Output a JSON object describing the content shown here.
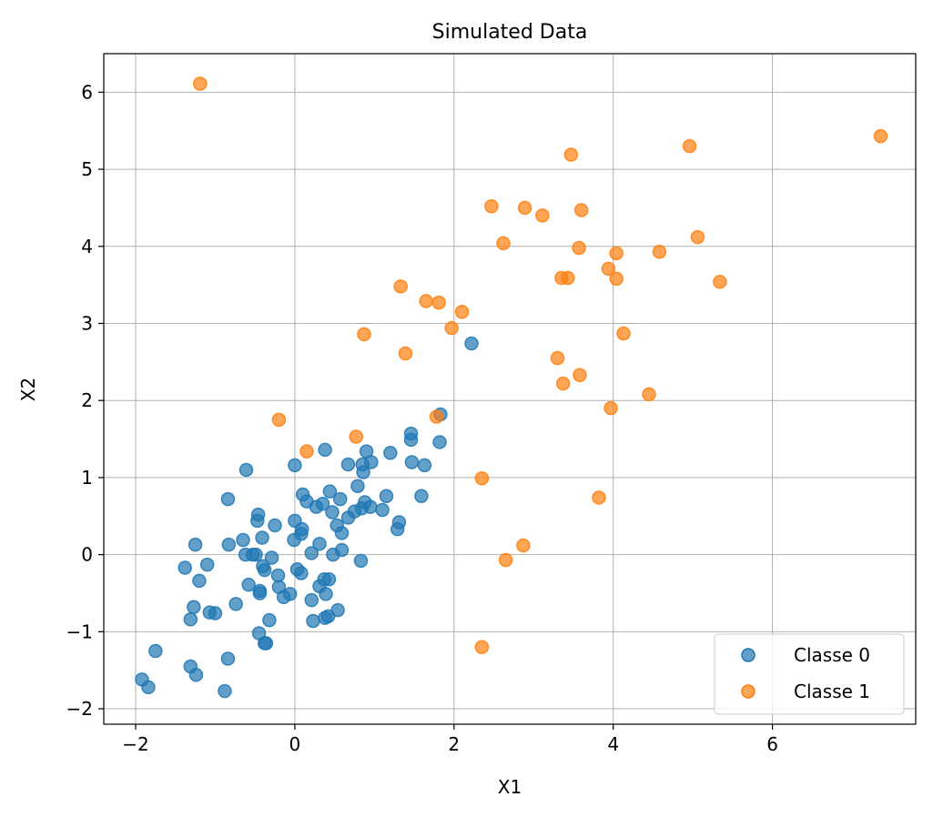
{
  "chart_data": {
    "type": "scatter",
    "title": "Simulated Data",
    "xlabel": "X1",
    "ylabel": "X2",
    "xlim": [
      -2.4,
      7.8
    ],
    "ylim": [
      -2.2,
      6.5
    ],
    "xticks": [
      -2,
      0,
      2,
      4,
      6
    ],
    "yticks": [
      -2,
      -1,
      0,
      1,
      2,
      3,
      4,
      5,
      6
    ],
    "xtick_labels": [
      "−2",
      "0",
      "2",
      "4",
      "6"
    ],
    "ytick_labels": [
      "−2",
      "−1",
      "0",
      "1",
      "2",
      "3",
      "4",
      "5",
      "6"
    ],
    "grid": true,
    "legend_position": "bottom-right",
    "series": [
      {
        "name": "Classe 0",
        "color": "#1f77b4",
        "points": [
          [
            2.22,
            2.74
          ],
          [
            1.83,
            1.82
          ],
          [
            1.46,
            1.57
          ],
          [
            1.46,
            1.49
          ],
          [
            1.82,
            1.46
          ],
          [
            0.9,
            1.34
          ],
          [
            1.2,
            1.32
          ],
          [
            0.38,
            1.36
          ],
          [
            0.96,
            1.2
          ],
          [
            1.47,
            1.2
          ],
          [
            1.63,
            1.16
          ],
          [
            0.0,
            1.16
          ],
          [
            0.67,
            1.17
          ],
          [
            0.85,
            1.17
          ],
          [
            -0.61,
            1.1
          ],
          [
            0.86,
            1.07
          ],
          [
            0.79,
            0.89
          ],
          [
            1.59,
            0.76
          ],
          [
            1.15,
            0.76
          ],
          [
            0.1,
            0.78
          ],
          [
            0.44,
            0.82
          ],
          [
            -0.84,
            0.72
          ],
          [
            0.15,
            0.69
          ],
          [
            0.57,
            0.72
          ],
          [
            0.88,
            0.68
          ],
          [
            0.35,
            0.66
          ],
          [
            0.27,
            0.62
          ],
          [
            0.84,
            0.6
          ],
          [
            0.95,
            0.62
          ],
          [
            1.1,
            0.58
          ],
          [
            0.47,
            0.55
          ],
          [
            0.75,
            0.56
          ],
          [
            0.67,
            0.48
          ],
          [
            -0.46,
            0.52
          ],
          [
            -0.47,
            0.44
          ],
          [
            0.0,
            0.44
          ],
          [
            1.31,
            0.42
          ],
          [
            0.53,
            0.38
          ],
          [
            -0.25,
            0.38
          ],
          [
            1.29,
            0.33
          ],
          [
            0.09,
            0.33
          ],
          [
            0.59,
            0.28
          ],
          [
            0.08,
            0.27
          ],
          [
            -0.41,
            0.22
          ],
          [
            -0.65,
            0.19
          ],
          [
            -0.01,
            0.19
          ],
          [
            0.31,
            0.14
          ],
          [
            -1.25,
            0.13
          ],
          [
            -0.83,
            0.13
          ],
          [
            0.59,
            0.06
          ],
          [
            0.21,
            0.02
          ],
          [
            -0.53,
            0.0
          ],
          [
            -0.49,
            0.0
          ],
          [
            -0.62,
            0.0
          ],
          [
            -0.29,
            -0.04
          ],
          [
            0.48,
            0.0
          ],
          [
            0.83,
            -0.08
          ],
          [
            -1.1,
            -0.13
          ],
          [
            -0.4,
            -0.15
          ],
          [
            -1.38,
            -0.17
          ],
          [
            -0.38,
            -0.2
          ],
          [
            0.03,
            -0.19
          ],
          [
            0.08,
            -0.24
          ],
          [
            -0.21,
            -0.27
          ],
          [
            -1.2,
            -0.34
          ],
          [
            0.37,
            -0.32
          ],
          [
            0.43,
            -0.32
          ],
          [
            0.31,
            -0.41
          ],
          [
            -0.2,
            -0.42
          ],
          [
            -0.58,
            -0.39
          ],
          [
            -0.44,
            -0.47
          ],
          [
            -0.44,
            -0.5
          ],
          [
            -0.06,
            -0.51
          ],
          [
            0.39,
            -0.51
          ],
          [
            -0.14,
            -0.55
          ],
          [
            0.21,
            -0.59
          ],
          [
            -0.74,
            -0.64
          ],
          [
            -1.27,
            -0.68
          ],
          [
            0.54,
            -0.72
          ],
          [
            -1.07,
            -0.75
          ],
          [
            -1.0,
            -0.76
          ],
          [
            0.42,
            -0.8
          ],
          [
            0.38,
            -0.82
          ],
          [
            -1.31,
            -0.84
          ],
          [
            -0.32,
            -0.85
          ],
          [
            0.23,
            -0.86
          ],
          [
            -0.45,
            -1.02
          ],
          [
            -0.38,
            -1.15
          ],
          [
            -0.36,
            -1.15
          ],
          [
            -0.84,
            -1.35
          ],
          [
            -1.31,
            -1.45
          ],
          [
            -1.24,
            -1.56
          ],
          [
            -1.75,
            -1.25
          ],
          [
            -1.92,
            -1.62
          ],
          [
            -1.84,
            -1.72
          ],
          [
            -0.88,
            -1.77
          ]
        ]
      },
      {
        "name": "Classe 1",
        "color": "#ff7f0e",
        "points": [
          [
            -1.19,
            6.11
          ],
          [
            7.36,
            5.43
          ],
          [
            4.96,
            5.3
          ],
          [
            3.47,
            5.19
          ],
          [
            2.47,
            4.52
          ],
          [
            2.89,
            4.5
          ],
          [
            3.11,
            4.4
          ],
          [
            3.6,
            4.47
          ],
          [
            5.06,
            4.12
          ],
          [
            2.62,
            4.04
          ],
          [
            3.57,
            3.98
          ],
          [
            4.04,
            3.91
          ],
          [
            4.58,
            3.93
          ],
          [
            3.94,
            3.71
          ],
          [
            3.35,
            3.59
          ],
          [
            3.43,
            3.59
          ],
          [
            4.04,
            3.58
          ],
          [
            5.34,
            3.54
          ],
          [
            1.33,
            3.48
          ],
          [
            1.65,
            3.29
          ],
          [
            1.81,
            3.27
          ],
          [
            2.1,
            3.15
          ],
          [
            1.97,
            2.94
          ],
          [
            0.87,
            2.86
          ],
          [
            4.13,
            2.87
          ],
          [
            1.39,
            2.61
          ],
          [
            3.3,
            2.55
          ],
          [
            3.58,
            2.33
          ],
          [
            3.37,
            2.22
          ],
          [
            4.45,
            2.08
          ],
          [
            3.97,
            1.9
          ],
          [
            -0.2,
            1.75
          ],
          [
            1.78,
            1.79
          ],
          [
            0.77,
            1.53
          ],
          [
            0.15,
            1.34
          ],
          [
            2.35,
            0.99
          ],
          [
            3.82,
            0.74
          ],
          [
            2.87,
            0.12
          ],
          [
            2.65,
            -0.07
          ],
          [
            2.35,
            -1.2
          ]
        ]
      }
    ]
  }
}
